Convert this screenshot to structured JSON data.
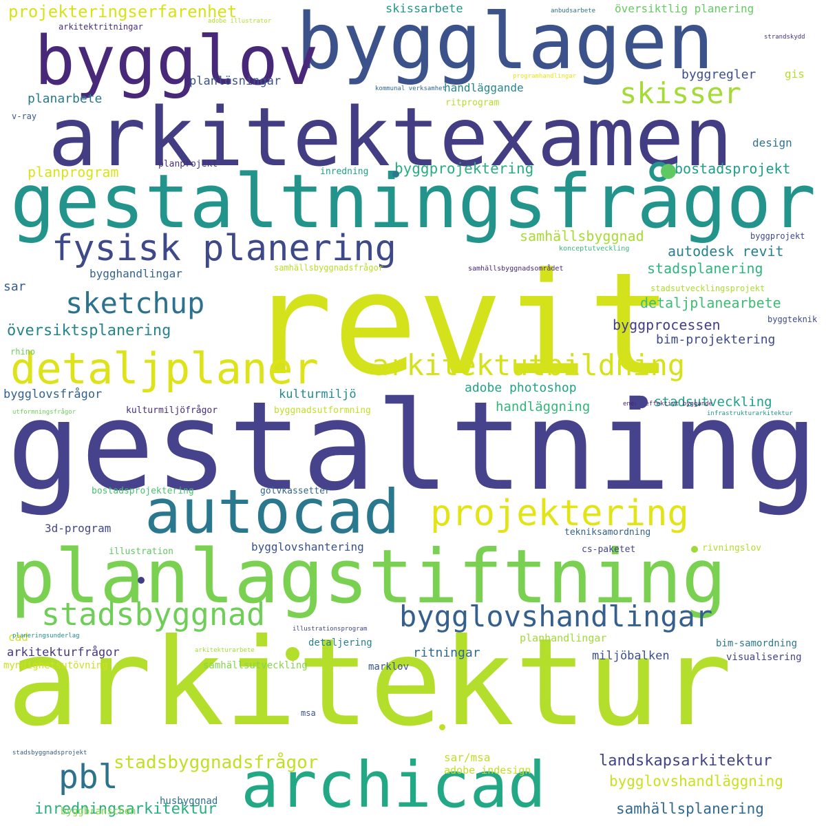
{
  "words": [
    {
      "text": "revit",
      "color": "#d3e21b",
      "weight": 100
    },
    {
      "text": "gestaltning",
      "color": "#46428b",
      "weight": 98
    },
    {
      "text": "arkitektur",
      "color": "#b4de2c",
      "weight": 96
    },
    {
      "text": "arkitektexamen",
      "color": "#433d84",
      "weight": 80
    },
    {
      "text": "bygglagen",
      "color": "#3b528b",
      "weight": 78
    },
    {
      "text": "gestaltningsfrågor",
      "color": "#22948b",
      "weight": 76
    },
    {
      "text": "planlagstiftning",
      "color": "#7ad151",
      "weight": 74
    },
    {
      "text": "bygglov",
      "color": "#482878",
      "weight": 62
    },
    {
      "text": "archicad",
      "color": "#22a884",
      "weight": 60
    },
    {
      "text": "autocad",
      "color": "#2a788e",
      "weight": 58
    },
    {
      "text": "fysisk planering",
      "color": "#3e4989",
      "weight": 46
    },
    {
      "text": "detaljplaner",
      "color": "#dde318",
      "weight": 46
    },
    {
      "text": "projektering",
      "color": "#e2e418",
      "weight": 46
    },
    {
      "text": "stadsbyggnad",
      "color": "#6ece58",
      "weight": 44
    },
    {
      "text": "arkitektutbildning",
      "color": "#d5e21a",
      "weight": 44
    },
    {
      "text": "sketchup",
      "color": "#2c728e",
      "weight": 40
    },
    {
      "text": "skisser",
      "color": "#a5db36",
      "weight": 40
    },
    {
      "text": "bygglovshandlingar",
      "color": "#355f8d",
      "weight": 40
    },
    {
      "text": "pbl",
      "color": "#2c718e",
      "weight": 42
    },
    {
      "text": "stadsbyggnadsfrågor",
      "color": "#c2df23",
      "weight": 28
    },
    {
      "text": "landskapsarkitektur",
      "color": "#414487",
      "weight": 24
    },
    {
      "text": "projekteringserfarenhet",
      "color": "#d8e219",
      "weight": 22
    },
    {
      "text": "översiktsplanering",
      "color": "#25848e",
      "weight": 22
    },
    {
      "text": "inredningsarkitektur",
      "color": "#29af7f",
      "weight": 22
    },
    {
      "text": "samhällsplanering",
      "color": "#31688e",
      "weight": 22
    },
    {
      "text": "bygglovshandläggning",
      "color": "#cae11f",
      "weight": 22
    },
    {
      "text": "byggprojektering",
      "color": "#28ae80",
      "weight": 20
    },
    {
      "text": "autodesk revit",
      "color": "#26828e",
      "weight": 20
    },
    {
      "text": "stadsplanering",
      "color": "#2fb47c",
      "weight": 20
    },
    {
      "text": "detaljplanearbete",
      "color": "#3dbc74",
      "weight": 20
    },
    {
      "text": "bostadsprojekt",
      "color": "#1f9e89",
      "weight": 20
    },
    {
      "text": "samhällsbyggnad",
      "color": "#a8db34",
      "weight": 20
    },
    {
      "text": "byggprocessen",
      "color": "#433e85",
      "weight": 20
    },
    {
      "text": "bim-projektering",
      "color": "#3e4a89",
      "weight": 18
    },
    {
      "text": "adobe photoshop",
      "color": "#20a486",
      "weight": 18
    },
    {
      "text": "stadsutveckling",
      "color": "#1fa088",
      "weight": 18
    },
    {
      "text": "handläggning",
      "color": "#32b67a",
      "weight": 18
    },
    {
      "text": "bygglovsfrågor",
      "color": "#33628d",
      "weight": 18
    },
    {
      "text": "kulturmiljö",
      "color": "#23898e",
      "weight": 18
    },
    {
      "text": "planprogram",
      "color": "#dae319",
      "weight": 18
    },
    {
      "text": "byggregler",
      "color": "#3c4f8a",
      "weight": 18
    },
    {
      "text": "planlösningar",
      "color": "#3a538b",
      "weight": 18
    },
    {
      "text": "handläggande",
      "color": "#24878e",
      "weight": 18
    },
    {
      "text": "planarbete",
      "color": "#2a788e",
      "weight": 18
    },
    {
      "text": "skissarbete",
      "color": "#1f988b",
      "weight": 18
    },
    {
      "text": "översiktlig planering",
      "color": "#63cb5f",
      "weight": 16
    },
    {
      "text": "bygghandlingar",
      "color": "#33638d",
      "weight": 16
    },
    {
      "text": "bygglovshantering",
      "color": "#3b518b",
      "weight": 16
    },
    {
      "text": "arkitekturfrågor",
      "color": "#453781",
      "weight": 18
    },
    {
      "text": "ritningar",
      "color": "#31688e",
      "weight": 16
    },
    {
      "text": "miljöbalken",
      "color": "#3c4f8a",
      "weight": 16
    },
    {
      "text": "planhandlingar",
      "color": "#a0da39",
      "weight": 16
    },
    {
      "text": "samhällsutveckling",
      "color": "#86d549",
      "weight": 14
    },
    {
      "text": "visualisering",
      "color": "#414487",
      "weight": 14
    },
    {
      "text": "bim-samordning",
      "color": "#2a788e",
      "weight": 14
    },
    {
      "text": "detaljering",
      "color": "#277f8e",
      "weight": 14
    },
    {
      "text": "marklov",
      "color": "#3a548c",
      "weight": 14
    },
    {
      "text": "myndighetsutövning",
      "color": "#cde11d",
      "weight": 14
    },
    {
      "text": "3d-program",
      "color": "#3f4788",
      "weight": 16
    },
    {
      "text": "sar/msa",
      "color": "#c0df25",
      "weight": 16
    },
    {
      "text": "adobe indesign",
      "color": "#c2df23",
      "weight": 14
    },
    {
      "text": "husbyggnad",
      "color": "#2d708e",
      "weight": 14
    },
    {
      "text": "byggbranschen",
      "color": "#86d549",
      "weight": 14
    },
    {
      "text": "gis",
      "color": "#b5de2b",
      "weight": 16
    },
    {
      "text": "sar",
      "color": "#365c8d",
      "weight": 18
    },
    {
      "text": "cad",
      "color": "#d2e21b",
      "weight": 16
    },
    {
      "text": "design",
      "color": "#2c738e",
      "weight": 16
    },
    {
      "text": "v-ray",
      "color": "#39568c",
      "weight": 12
    },
    {
      "text": "rhino",
      "color": "#6ccd5a",
      "weight": 12
    },
    {
      "text": "inredning",
      "color": "#1fa188",
      "weight": 13
    },
    {
      "text": "planprojekt",
      "color": "#46327e",
      "weight": 13
    },
    {
      "text": "ritprogram",
      "color": "#b5de2b",
      "weight": 13
    },
    {
      "text": "arkitektritningar",
      "color": "#472d7b",
      "weight": 12
    },
    {
      "text": "illustration",
      "color": "#5ec962",
      "weight": 13
    },
    {
      "text": "golvkassetter",
      "color": "#32648e",
      "weight": 13
    },
    {
      "text": "bostadsprojektering",
      "color": "#4ac16d",
      "weight": 13
    },
    {
      "text": "tekniksamordning",
      "color": "#355f8d",
      "weight": 13
    },
    {
      "text": "cs-paketet",
      "color": "#404588",
      "weight": 13
    },
    {
      "text": "rivningslov",
      "color": "#b2dd2d",
      "weight": 13
    },
    {
      "text": "byggnadsutformning",
      "color": "#c0df25",
      "weight": 13
    },
    {
      "text": "kulturmiljöfrågor",
      "color": "#472c7a",
      "weight": 13
    },
    {
      "text": "byggteknik",
      "color": "#3e4a89",
      "weight": 12
    },
    {
      "text": "byggprojekt",
      "color": "#3e4989",
      "weight": 12
    },
    {
      "text": "stadsutvecklingsprojekt",
      "color": "#addc30",
      "weight": 12
    },
    {
      "text": "samhällsbyggnadsfrågor",
      "color": "#b8de29",
      "weight": 12
    },
    {
      "text": "samhällsbyggnadsområdet",
      "color": "#482475",
      "weight": 10
    },
    {
      "text": "konceptutveckling",
      "color": "#35b779",
      "weight": 10
    },
    {
      "text": "energieffektivt byggande",
      "color": "#482173",
      "weight": 9
    },
    {
      "text": "infrastrukturarkitektur",
      "color": "#1f968b",
      "weight": 9
    },
    {
      "text": "utformningsfrågor",
      "color": "#6ccd5a",
      "weight": 9
    },
    {
      "text": "illustrationsprogram",
      "color": "#3f4788",
      "weight": 9
    },
    {
      "text": "planeringsunderlag",
      "color": "#218e8d",
      "weight": 9
    },
    {
      "text": "arkitekturarbete",
      "color": "#a5db36",
      "weight": 9
    },
    {
      "text": "stadsbyggnadsprojekt",
      "color": "#38588c",
      "weight": 9
    },
    {
      "text": "msa",
      "color": "#3b528b",
      "weight": 12
    },
    {
      "text": "kommunal verksamhet",
      "color": "#31688e",
      "weight": 9
    },
    {
      "text": "programhandlingar",
      "color": "#e5e419",
      "weight": 9
    },
    {
      "text": "anbudsarbete",
      "color": "#2c728e",
      "weight": 9
    },
    {
      "text": "adobe illustrator",
      "color": "#b2dd2d",
      "weight": 9
    },
    {
      "text": "strandskydd",
      "color": "#46307e",
      "weight": 9
    }
  ],
  "dots": [
    {
      "color": "#2a788e"
    },
    {
      "color": "#5ec962"
    },
    {
      "color": "#46428b"
    },
    {
      "color": "#433d84"
    },
    {
      "color": "#b4de2c"
    },
    {
      "color": "#a0da39"
    },
    {
      "color": "#c0df25"
    }
  ]
}
